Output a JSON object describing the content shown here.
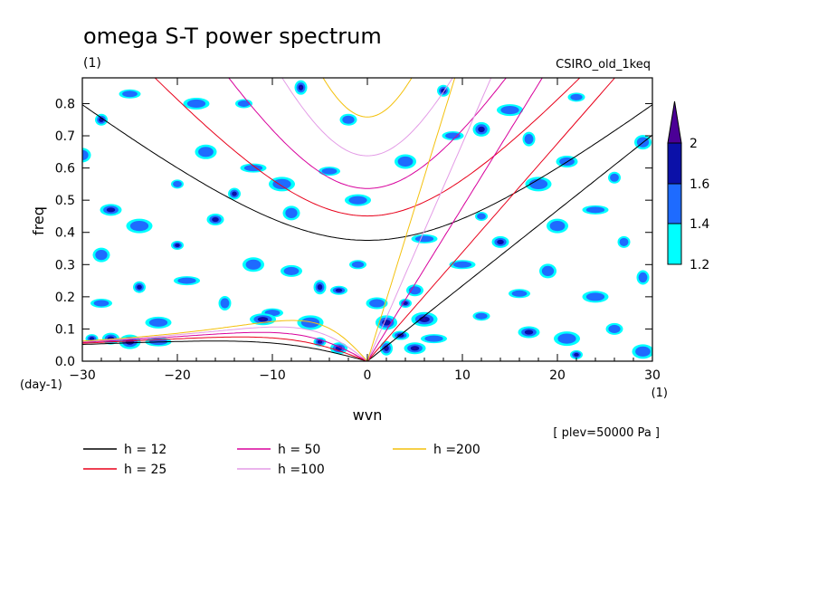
{
  "chart_data": {
    "type": "heatmap",
    "title": "omega S-T power spectrum",
    "subtitle_left": "(1)",
    "subtitle_right": "CSIRO_old_1keq",
    "xlabel": "wvn",
    "ylabel": "freq",
    "x_unit": "(1)",
    "y_unit": "(day-1)",
    "plev_note": "[ plev=50000 Pa ]",
    "xlim": [
      -30,
      30
    ],
    "ylim": [
      0,
      0.88
    ],
    "x_ticks": [
      -30,
      -20,
      -10,
      0,
      10,
      20,
      30
    ],
    "y_ticks": [
      0.0,
      0.1,
      0.2,
      0.3,
      0.4,
      0.5,
      0.6,
      0.7,
      0.8
    ],
    "x_tick_labels": [
      "−30",
      "−20",
      "−10",
      "0",
      "10",
      "20",
      "30"
    ],
    "y_tick_labels": [
      "0.0",
      "0.1",
      "0.2",
      "0.3",
      "0.4",
      "0.5",
      "0.6",
      "0.7",
      "0.8"
    ],
    "colorbar": {
      "levels": [
        1.2,
        1.4,
        1.6,
        2
      ],
      "labels": [
        "1.2",
        "1.4",
        "1.6",
        "2"
      ],
      "colors": [
        "#00ffff",
        "#1e6bff",
        "#0b10a8",
        "#4b0096"
      ]
    },
    "dispersion_curves": [
      {
        "name": "h = 12",
        "h": 12,
        "color": "#000000"
      },
      {
        "name": "h = 25",
        "h": 25,
        "color": "#e8001a"
      },
      {
        "name": "h = 50",
        "h": 50,
        "color": "#d8009c"
      },
      {
        "name": "h =100",
        "h": 100,
        "color": "#e39be6"
      },
      {
        "name": "h =200",
        "h": 200,
        "color": "#f4c10c"
      }
    ],
    "blobs": [
      [
        -29,
        0.07,
        1.7
      ],
      [
        -27,
        0.07,
        2
      ],
      [
        -25,
        0.06,
        1.7
      ],
      [
        -22,
        0.06,
        1.4
      ],
      [
        -28,
        0.75,
        1.7
      ],
      [
        -30,
        0.64,
        1.4
      ],
      [
        -25,
        0.83,
        1.4
      ],
      [
        -18,
        0.8,
        1.4
      ],
      [
        -7,
        0.85,
        2
      ],
      [
        -13,
        0.8,
        1.4
      ],
      [
        -27,
        0.47,
        1.7
      ],
      [
        -24,
        0.42,
        1.4
      ],
      [
        -20,
        0.36,
        1.7
      ],
      [
        -16,
        0.44,
        1.7
      ],
      [
        -12,
        0.3,
        1.4
      ],
      [
        -19,
        0.25,
        1.4
      ],
      [
        -24,
        0.23,
        1.7
      ],
      [
        -28,
        0.33,
        1.4
      ],
      [
        -10,
        0.15,
        1.4
      ],
      [
        -11,
        0.13,
        2
      ],
      [
        -5,
        0.23,
        1.7
      ],
      [
        -3,
        0.22,
        2
      ],
      [
        -8,
        0.28,
        1.4
      ],
      [
        -6,
        0.12,
        1.4
      ],
      [
        -5,
        0.06,
        2
      ],
      [
        -3,
        0.04,
        1.7
      ],
      [
        -17,
        0.65,
        1.4
      ],
      [
        -12,
        0.6,
        1.4
      ],
      [
        -14,
        0.52,
        1.7
      ],
      [
        -8,
        0.46,
        1.4
      ],
      [
        -4,
        0.59,
        1.4
      ],
      [
        -1,
        0.5,
        1.4
      ],
      [
        2,
        0.04,
        2
      ],
      [
        3.5,
        0.08,
        2
      ],
      [
        5,
        0.04,
        2
      ],
      [
        6,
        0.13,
        2
      ],
      [
        4,
        0.18,
        1.7
      ],
      [
        5,
        0.22,
        1.4
      ],
      [
        2,
        0.12,
        1.7
      ],
      [
        7,
        0.07,
        1.4
      ],
      [
        8,
        0.84,
        1.7
      ],
      [
        12,
        0.72,
        1.7
      ],
      [
        9,
        0.7,
        1.4
      ],
      [
        15,
        0.78,
        1.4
      ],
      [
        17,
        0.69,
        1.4
      ],
      [
        22,
        0.82,
        1.4
      ],
      [
        21,
        0.62,
        1.4
      ],
      [
        18,
        0.55,
        1.4
      ],
      [
        12,
        0.45,
        1.4
      ],
      [
        14,
        0.37,
        1.7
      ],
      [
        20,
        0.42,
        1.4
      ],
      [
        24,
        0.47,
        1.4
      ],
      [
        27,
        0.37,
        1.4
      ],
      [
        19,
        0.28,
        1.4
      ],
      [
        16,
        0.21,
        1.4
      ],
      [
        24,
        0.2,
        1.4
      ],
      [
        29,
        0.26,
        1.4
      ],
      [
        12,
        0.14,
        1.4
      ],
      [
        17,
        0.09,
        1.7
      ],
      [
        21,
        0.07,
        1.4
      ],
      [
        22,
        0.02,
        1.7
      ],
      [
        26,
        0.1,
        1.4
      ],
      [
        29,
        0.03,
        1.4
      ],
      [
        10,
        0.3,
        1.4
      ],
      [
        26,
        0.57,
        1.4
      ],
      [
        29,
        0.68,
        1.4
      ],
      [
        -28,
        0.18,
        1.4
      ],
      [
        -22,
        0.12,
        1.4
      ],
      [
        -15,
        0.18,
        1.4
      ],
      [
        -1,
        0.3,
        1.4
      ],
      [
        1,
        0.18,
        1.4
      ],
      [
        -9,
        0.55,
        1.4
      ],
      [
        -20,
        0.55,
        1.4
      ],
      [
        -2,
        0.75,
        1.4
      ],
      [
        4,
        0.62,
        1.4
      ],
      [
        6,
        0.38,
        1.4
      ]
    ]
  }
}
